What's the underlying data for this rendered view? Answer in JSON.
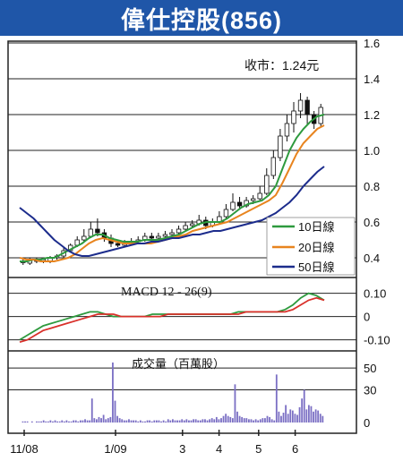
{
  "header": {
    "title": "偉仕控股(856)"
  },
  "colors": {
    "banner": "#1f56a8",
    "ma10": "#2e9a3e",
    "ma20": "#e8841e",
    "ma50": "#1c2c8c",
    "macd": "#2e9a3e",
    "signal": "#d9302a",
    "volume": "#7b6fc4"
  },
  "chart_data": [
    {
      "type": "line",
      "title": "",
      "annotation": "收市：1.24元",
      "y_ticks": [
        "1.6",
        "1.4",
        "1.2",
        "1.0",
        "0.8",
        "0.6",
        "0.4"
      ],
      "ylim": [
        0.3,
        1.6
      ],
      "x_ticks": [
        "11/08",
        "1/09",
        "3",
        "4",
        "5",
        "6"
      ],
      "series": [
        {
          "name": "10日線",
          "values": [
            0.38,
            0.38,
            0.39,
            0.39,
            0.4,
            0.4,
            0.42,
            0.44,
            0.46,
            0.48,
            0.51,
            0.53,
            0.53,
            0.51,
            0.5,
            0.49,
            0.49,
            0.49,
            0.5,
            0.5,
            0.5,
            0.51,
            0.52,
            0.53,
            0.55,
            0.57,
            0.59,
            0.6,
            0.6,
            0.6,
            0.62,
            0.65,
            0.68,
            0.7,
            0.71,
            0.72,
            0.75,
            0.8,
            0.9,
            1.0,
            1.07,
            1.12,
            1.16,
            1.19,
            1.2
          ]
        },
        {
          "name": "20日線",
          "values": [
            0.4,
            0.39,
            0.39,
            0.38,
            0.38,
            0.38,
            0.39,
            0.4,
            0.42,
            0.45,
            0.48,
            0.5,
            0.51,
            0.5,
            0.49,
            0.48,
            0.48,
            0.48,
            0.48,
            0.48,
            0.49,
            0.5,
            0.51,
            0.52,
            0.53,
            0.55,
            0.56,
            0.57,
            0.58,
            0.59,
            0.6,
            0.62,
            0.64,
            0.66,
            0.68,
            0.7,
            0.72,
            0.75,
            0.82,
            0.9,
            0.98,
            1.04,
            1.08,
            1.12,
            1.14
          ]
        },
        {
          "name": "50日線",
          "values": [
            0.68,
            0.65,
            0.62,
            0.58,
            0.54,
            0.5,
            0.47,
            0.44,
            0.42,
            0.41,
            0.41,
            0.42,
            0.43,
            0.44,
            0.45,
            0.46,
            0.47,
            0.48,
            0.48,
            0.49,
            0.49,
            0.5,
            0.51,
            0.51,
            0.52,
            0.53,
            0.53,
            0.54,
            0.55,
            0.55,
            0.56,
            0.57,
            0.58,
            0.59,
            0.6,
            0.61,
            0.63,
            0.65,
            0.68,
            0.71,
            0.75,
            0.8,
            0.84,
            0.88,
            0.91
          ]
        }
      ],
      "candles": [
        {
          "o": 0.38,
          "c": 0.38,
          "h": 0.4,
          "l": 0.36
        },
        {
          "o": 0.37,
          "c": 0.39,
          "h": 0.4,
          "l": 0.36
        },
        {
          "o": 0.39,
          "c": 0.38,
          "h": 0.4,
          "l": 0.37
        },
        {
          "o": 0.38,
          "c": 0.39,
          "h": 0.4,
          "l": 0.37
        },
        {
          "o": 0.38,
          "c": 0.4,
          "h": 0.41,
          "l": 0.37
        },
        {
          "o": 0.4,
          "c": 0.41,
          "h": 0.42,
          "l": 0.39
        },
        {
          "o": 0.41,
          "c": 0.44,
          "h": 0.46,
          "l": 0.4
        },
        {
          "o": 0.44,
          "c": 0.47,
          "h": 0.48,
          "l": 0.43
        },
        {
          "o": 0.47,
          "c": 0.5,
          "h": 0.52,
          "l": 0.46
        },
        {
          "o": 0.5,
          "c": 0.52,
          "h": 0.56,
          "l": 0.49
        },
        {
          "o": 0.52,
          "c": 0.56,
          "h": 0.6,
          "l": 0.51
        },
        {
          "o": 0.56,
          "c": 0.54,
          "h": 0.62,
          "l": 0.52
        },
        {
          "o": 0.54,
          "c": 0.51,
          "h": 0.56,
          "l": 0.49
        },
        {
          "o": 0.51,
          "c": 0.48,
          "h": 0.53,
          "l": 0.46
        },
        {
          "o": 0.48,
          "c": 0.47,
          "h": 0.5,
          "l": 0.46
        },
        {
          "o": 0.47,
          "c": 0.48,
          "h": 0.5,
          "l": 0.46
        },
        {
          "o": 0.48,
          "c": 0.49,
          "h": 0.51,
          "l": 0.47
        },
        {
          "o": 0.49,
          "c": 0.5,
          "h": 0.52,
          "l": 0.48
        },
        {
          "o": 0.5,
          "c": 0.52,
          "h": 0.54,
          "l": 0.49
        },
        {
          "o": 0.52,
          "c": 0.51,
          "h": 0.54,
          "l": 0.5
        },
        {
          "o": 0.51,
          "c": 0.52,
          "h": 0.54,
          "l": 0.5
        },
        {
          "o": 0.52,
          "c": 0.53,
          "h": 0.55,
          "l": 0.51
        },
        {
          "o": 0.53,
          "c": 0.54,
          "h": 0.56,
          "l": 0.52
        },
        {
          "o": 0.54,
          "c": 0.56,
          "h": 0.58,
          "l": 0.53
        },
        {
          "o": 0.56,
          "c": 0.58,
          "h": 0.6,
          "l": 0.55
        },
        {
          "o": 0.58,
          "c": 0.59,
          "h": 0.61,
          "l": 0.57
        },
        {
          "o": 0.59,
          "c": 0.61,
          "h": 0.64,
          "l": 0.58
        },
        {
          "o": 0.61,
          "c": 0.58,
          "h": 0.63,
          "l": 0.56
        },
        {
          "o": 0.58,
          "c": 0.6,
          "h": 0.62,
          "l": 0.57
        },
        {
          "o": 0.6,
          "c": 0.63,
          "h": 0.66,
          "l": 0.59
        },
        {
          "o": 0.63,
          "c": 0.67,
          "h": 0.7,
          "l": 0.62
        },
        {
          "o": 0.67,
          "c": 0.71,
          "h": 0.76,
          "l": 0.66
        },
        {
          "o": 0.71,
          "c": 0.69,
          "h": 0.74,
          "l": 0.67
        },
        {
          "o": 0.69,
          "c": 0.72,
          "h": 0.74,
          "l": 0.68
        },
        {
          "o": 0.72,
          "c": 0.73,
          "h": 0.75,
          "l": 0.7
        },
        {
          "o": 0.73,
          "c": 0.76,
          "h": 0.8,
          "l": 0.72
        },
        {
          "o": 0.76,
          "c": 0.86,
          "h": 0.9,
          "l": 0.75
        },
        {
          "o": 0.86,
          "c": 0.96,
          "h": 1.0,
          "l": 0.84
        },
        {
          "o": 0.96,
          "c": 1.08,
          "h": 1.12,
          "l": 0.94
        },
        {
          "o": 1.08,
          "c": 1.15,
          "h": 1.2,
          "l": 1.05
        },
        {
          "o": 1.15,
          "c": 1.22,
          "h": 1.27,
          "l": 1.1
        },
        {
          "o": 1.22,
          "c": 1.28,
          "h": 1.32,
          "l": 1.18
        },
        {
          "o": 1.28,
          "c": 1.2,
          "h": 1.3,
          "l": 1.14
        },
        {
          "o": 1.2,
          "c": 1.15,
          "h": 1.22,
          "l": 1.12
        },
        {
          "o": 1.15,
          "c": 1.24,
          "h": 1.26,
          "l": 1.13
        }
      ]
    },
    {
      "type": "line",
      "title": "MACD 12 - 26(9)",
      "y_ticks": [
        "0.10",
        "0",
        "-0.10"
      ],
      "ylim": [
        -0.14,
        0.16
      ],
      "series": [
        {
          "values": [
            -0.1,
            -0.08,
            -0.06,
            -0.04,
            -0.03,
            -0.02,
            -0.01,
            0.0,
            0.01,
            0.02,
            0.02,
            0.01,
            0.0,
            0.0,
            0.0,
            0.0,
            0.0,
            0.01,
            0.01,
            0.01,
            0.01,
            0.01,
            0.01,
            0.01,
            0.01,
            0.01,
            0.01,
            0.01,
            0.02,
            0.02,
            0.02,
            0.02,
            0.02,
            0.02,
            0.03,
            0.05,
            0.08,
            0.1,
            0.09,
            0.07
          ]
        },
        {
          "values": [
            -0.11,
            -0.1,
            -0.08,
            -0.06,
            -0.05,
            -0.04,
            -0.03,
            -0.02,
            -0.01,
            0.0,
            0.01,
            0.01,
            0.01,
            0.0,
            0.0,
            0.0,
            0.0,
            0.0,
            0.0,
            0.01,
            0.01,
            0.01,
            0.01,
            0.01,
            0.01,
            0.01,
            0.01,
            0.01,
            0.01,
            0.02,
            0.02,
            0.02,
            0.02,
            0.02,
            0.02,
            0.03,
            0.05,
            0.07,
            0.08,
            0.07
          ]
        }
      ]
    },
    {
      "type": "bar",
      "title": "成交量（百萬股）",
      "y_ticks": [
        "50",
        "30",
        "0"
      ],
      "ylim": [
        0,
        64
      ],
      "values": [
        0,
        1,
        1,
        1,
        0,
        1,
        0,
        1,
        1,
        1,
        2,
        1,
        1,
        2,
        1,
        2,
        1,
        1,
        2,
        1,
        2,
        1,
        1,
        2,
        2,
        1,
        2,
        2,
        3,
        2,
        2,
        22,
        4,
        3,
        5,
        4,
        7,
        3,
        4,
        5,
        55,
        20,
        6,
        4,
        3,
        2,
        2,
        3,
        2,
        2,
        2,
        1,
        2,
        1,
        1,
        2,
        2,
        1,
        2,
        2,
        2,
        1,
        2,
        1,
        3,
        2,
        3,
        2,
        2,
        2,
        3,
        2,
        3,
        2,
        2,
        3,
        3,
        2,
        2,
        3,
        3,
        2,
        3,
        4,
        3,
        5,
        3,
        4,
        6,
        8,
        6,
        5,
        4,
        35,
        10,
        6,
        5,
        4,
        4,
        3,
        3,
        2,
        3,
        2,
        3,
        4,
        4,
        6,
        5,
        3,
        2,
        44,
        10,
        6,
        9,
        16,
        8,
        12,
        11,
        8,
        7,
        14,
        22,
        30,
        12,
        16,
        15,
        10,
        12,
        11,
        8,
        6
      ]
    }
  ]
}
